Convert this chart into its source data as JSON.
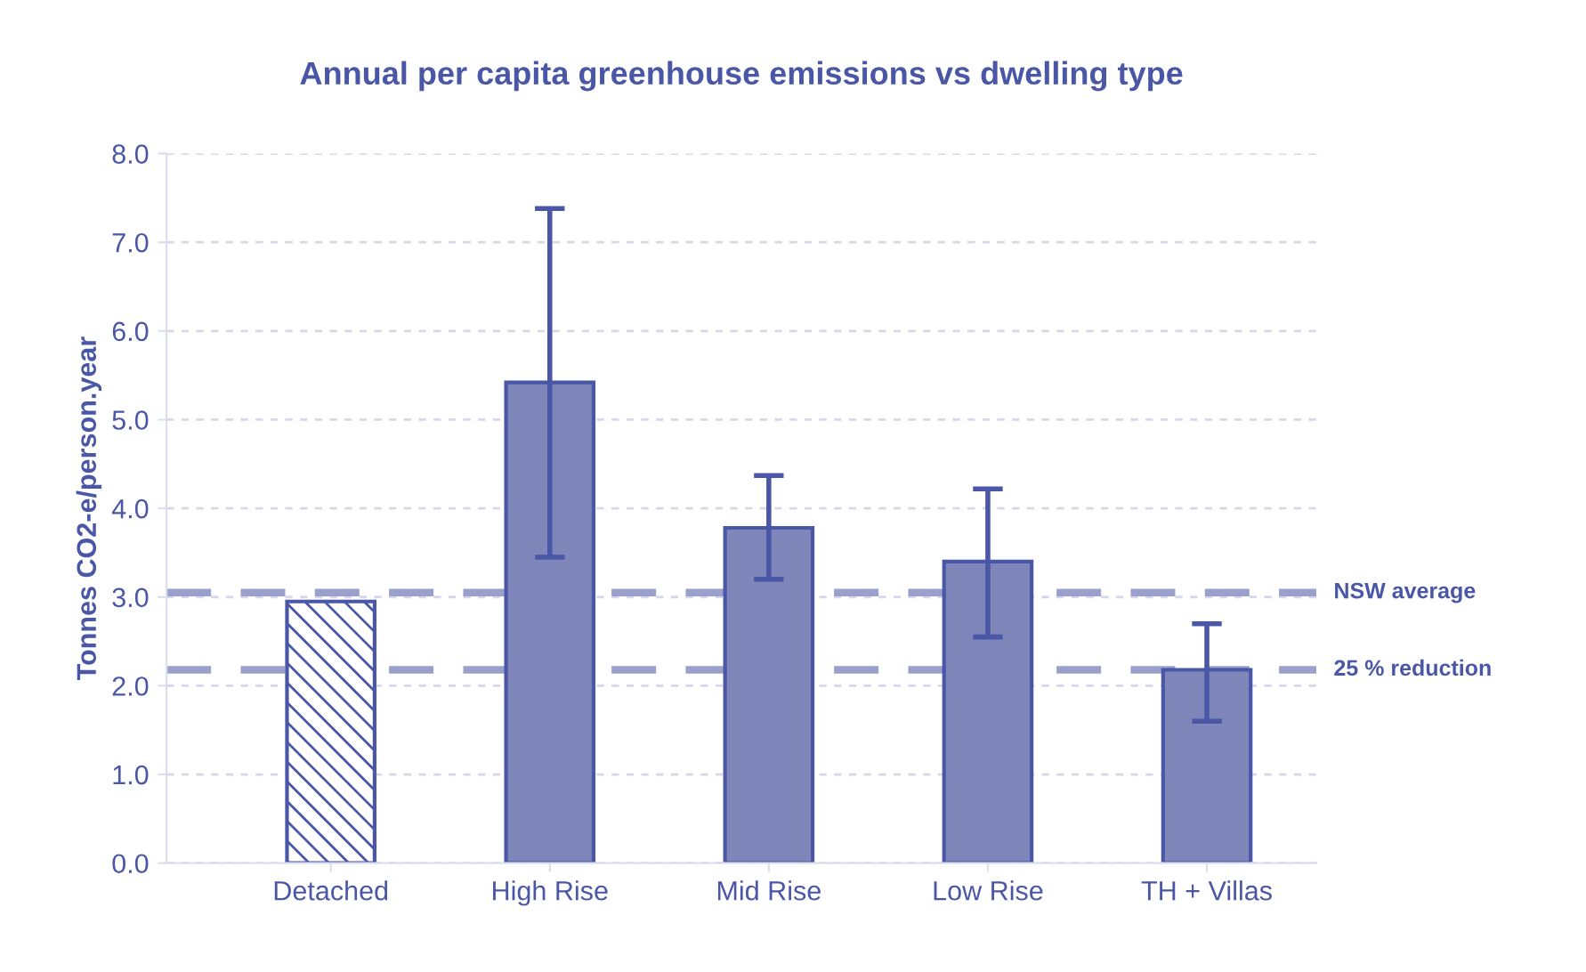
{
  "chart_data": {
    "type": "bar",
    "title": "Annual per capita greenhouse emissions vs dwelling type",
    "ylabel": "Tonnes CO2-e/person.year",
    "categories": [
      "Detached",
      "High Rise",
      "Mid Rise",
      "Low Rise",
      "TH + Villas"
    ],
    "values": [
      2.95,
      5.42,
      3.78,
      3.4,
      2.18
    ],
    "errors": [
      null,
      [
        3.45,
        7.38
      ],
      [
        3.2,
        4.37
      ],
      [
        2.55,
        4.22
      ],
      [
        1.6,
        2.7
      ]
    ],
    "colors": [
      "#4a56a6",
      "#7f86b9",
      "#7f86b9",
      "#7f86b9",
      "#7f86b9"
    ],
    "ylim": [
      0,
      8
    ],
    "yticks": [
      {
        "value": 0,
        "label": "0.0"
      },
      {
        "value": 1,
        "label": "1.0"
      },
      {
        "value": 2,
        "label": "2.0"
      },
      {
        "value": 3,
        "label": "3.0"
      },
      {
        "value": 4,
        "label": "4.0"
      },
      {
        "value": 5,
        "label": "5.0"
      },
      {
        "value": 6,
        "label": "6.0"
      },
      {
        "value": 7,
        "label": "7.0"
      },
      {
        "value": 8,
        "label": "8.0"
      }
    ],
    "grid": "y",
    "ref_lines": [
      {
        "axis": "y",
        "value": 3.05,
        "label": "NSW average",
        "color": "#9aa0cc",
        "line_style": "dashed"
      },
      {
        "axis": "y",
        "value": 2.18,
        "label": "25 % reduction",
        "color": "#9aa0cc",
        "line_style": "dashed"
      }
    ]
  }
}
